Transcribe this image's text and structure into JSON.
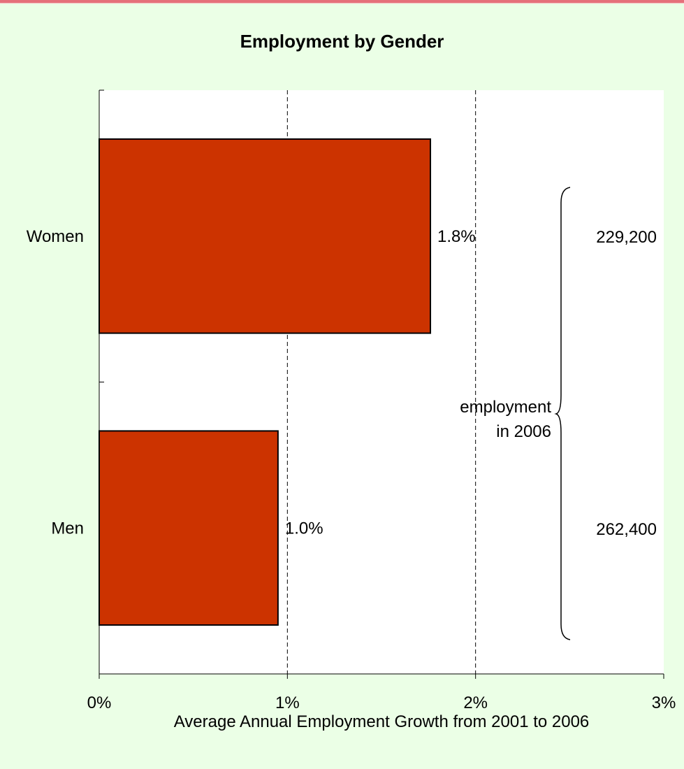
{
  "chart_data": {
    "type": "bar",
    "orientation": "horizontal",
    "title": "Employment by Gender",
    "xlabel": "Average Annual Employment Growth from 2001 to 2006",
    "ylabel": "",
    "categories": [
      "Women",
      "Men"
    ],
    "values": [
      1.76,
      0.95
    ],
    "value_labels": [
      "1.8%",
      "1.0%"
    ],
    "xlim": [
      0,
      3
    ],
    "x_ticks": [
      {
        "value": 0,
        "label": "0%"
      },
      {
        "value": 1,
        "label": "1%"
      },
      {
        "value": 2,
        "label": "2%"
      },
      {
        "value": 3,
        "label": "3%"
      }
    ],
    "grid": "vertical dashed",
    "bar_color": "#cc3300",
    "annotation": {
      "lines": [
        "employment",
        "in 2006"
      ],
      "values": [
        "229,200",
        "262,400"
      ]
    }
  }
}
